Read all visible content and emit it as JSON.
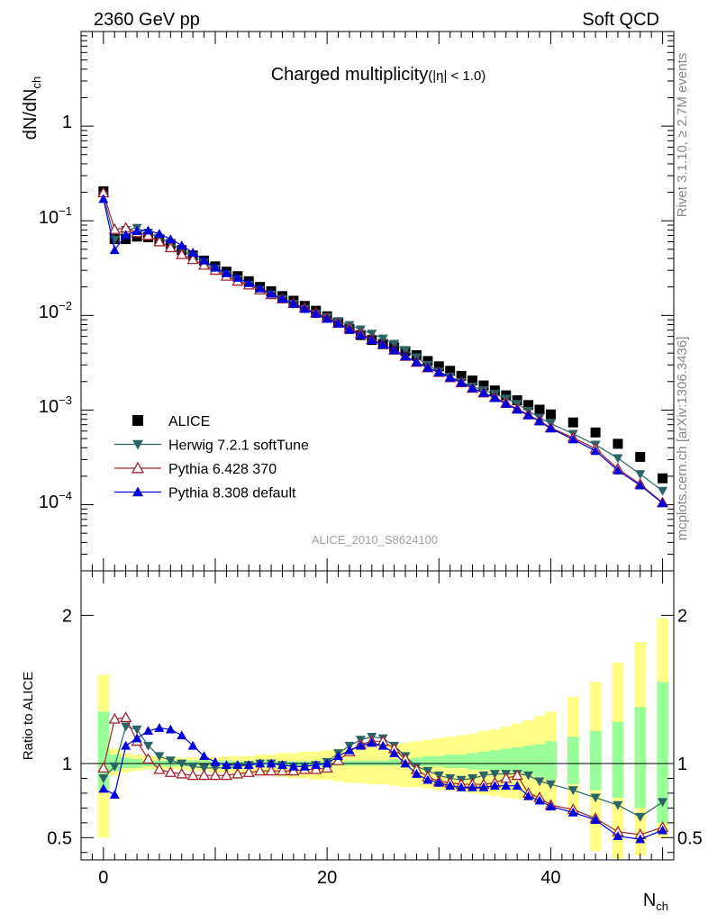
{
  "header": {
    "left": "2360 GeV pp",
    "right": "Soft QCD"
  },
  "side_text": {
    "rivet": "Rivet 3.1.10, ≥ 2.7M events",
    "mcplots": "mcplots.cern.ch [arXiv:1306.3436]"
  },
  "watermark": "ALICE_2010_S8624100",
  "chart_data": [
    {
      "type": "scatter",
      "title": "Charged multiplicity",
      "title_suffix": "(|η| < 1.0)",
      "ylabel": "dN/dN",
      "ylabel_sub": "ch",
      "yscale": "log",
      "ylim": [
        2e-05,
        10
      ],
      "xlim": [
        -2,
        51
      ],
      "ytick_labels": {
        "one": "1",
        "m1": {
          "base": "10",
          "exp": "−1"
        },
        "m2": {
          "base": "10",
          "exp": "−2"
        },
        "m3": {
          "base": "10",
          "exp": "−3"
        },
        "m4": {
          "base": "10",
          "exp": "−4"
        }
      },
      "legend_position": "bottom-left",
      "series": [
        {
          "name": "ALICE",
          "color": "#000000",
          "marker": "square",
          "x": [
            0,
            1,
            2,
            3,
            4,
            5,
            6,
            7,
            8,
            9,
            10,
            11,
            12,
            13,
            14,
            15,
            16,
            17,
            18,
            19,
            20,
            21,
            22,
            23,
            24,
            25,
            26,
            27,
            28,
            29,
            30,
            31,
            32,
            33,
            34,
            35,
            36,
            37,
            38,
            39,
            40,
            42,
            44,
            46,
            48,
            50
          ],
          "values": [
            0.205,
            0.064,
            0.064,
            0.068,
            0.067,
            0.063,
            0.057,
            0.049,
            0.043,
            0.038,
            0.033,
            0.029,
            0.026,
            0.023,
            0.02,
            0.018,
            0.016,
            0.0143,
            0.0126,
            0.0112,
            0.0098,
            0.0084,
            0.0072,
            0.0062,
            0.0055,
            0.005,
            0.0046,
            0.0042,
            0.0038,
            0.0033,
            0.0029,
            0.0026,
            0.0023,
            0.00205,
            0.00182,
            0.00161,
            0.00143,
            0.00127,
            0.00113,
            0.00101,
            0.0009,
            0.00074,
            0.00058,
            0.00044,
            0.00032,
            0.00019
          ]
        },
        {
          "name": "Herwig 7.2.1 softTune",
          "color": "#2b6468",
          "marker": "triangle-down",
          "x": [
            0,
            1,
            2,
            3,
            4,
            5,
            6,
            7,
            8,
            9,
            10,
            11,
            12,
            13,
            14,
            15,
            16,
            17,
            18,
            19,
            20,
            21,
            22,
            23,
            24,
            25,
            26,
            27,
            28,
            29,
            30,
            31,
            32,
            33,
            34,
            35,
            36,
            37,
            38,
            39,
            40,
            42,
            44,
            46,
            48,
            50
          ],
          "values": [
            0.185,
            0.063,
            0.08,
            0.084,
            0.075,
            0.066,
            0.058,
            0.049,
            0.042,
            0.036,
            0.031,
            0.027,
            0.024,
            0.021,
            0.0186,
            0.0166,
            0.0148,
            0.0132,
            0.0117,
            0.0104,
            0.0096,
            0.0087,
            0.0079,
            0.0071,
            0.0064,
            0.0057,
            0.005,
            0.0043,
            0.0036,
            0.003,
            0.00255,
            0.00225,
            0.00198,
            0.00177,
            0.00162,
            0.00148,
            0.00132,
            0.00116,
            0.00098,
            0.00083,
            0.00072,
            0.00056,
            0.00043,
            0.00031,
            0.00021,
            0.00014
          ]
        },
        {
          "name": "Pythia 6.428 370",
          "color": "#a3202f",
          "marker": "triangle-up-open",
          "x": [
            0,
            1,
            2,
            3,
            4,
            5,
            6,
            7,
            8,
            9,
            10,
            11,
            12,
            13,
            14,
            15,
            16,
            17,
            18,
            19,
            20,
            21,
            22,
            23,
            24,
            25,
            26,
            27,
            28,
            29,
            30,
            31,
            32,
            33,
            34,
            35,
            36,
            37,
            38,
            39,
            40,
            42,
            44,
            46,
            48,
            50
          ],
          "values": [
            0.198,
            0.081,
            0.084,
            0.075,
            0.07,
            0.06,
            0.052,
            0.044,
            0.039,
            0.034,
            0.03,
            0.026,
            0.023,
            0.021,
            0.0186,
            0.0166,
            0.015,
            0.0134,
            0.012,
            0.0106,
            0.0094,
            0.0083,
            0.0073,
            0.0064,
            0.0056,
            0.0049,
            0.0043,
            0.0037,
            0.0032,
            0.0028,
            0.0025,
            0.0022,
            0.00195,
            0.0017,
            0.00152,
            0.00136,
            0.00118,
            0.00103,
            0.00089,
            0.00077,
            0.00065,
            0.00051,
            0.00039,
            0.00024,
            0.000165,
            0.000105
          ]
        },
        {
          "name": "Pythia 8.308 default",
          "color": "#0000dd",
          "marker": "triangle-up",
          "x": [
            0,
            1,
            2,
            3,
            4,
            5,
            6,
            7,
            8,
            9,
            10,
            11,
            12,
            13,
            14,
            15,
            16,
            17,
            18,
            19,
            20,
            21,
            22,
            23,
            24,
            25,
            26,
            27,
            28,
            29,
            30,
            31,
            32,
            33,
            34,
            35,
            36,
            37,
            38,
            39,
            40,
            42,
            44,
            46,
            48,
            50
          ],
          "values": [
            0.17,
            0.049,
            0.071,
            0.078,
            0.079,
            0.073,
            0.064,
            0.055,
            0.046,
            0.038,
            0.032,
            0.028,
            0.025,
            0.022,
            0.0193,
            0.017,
            0.015,
            0.0133,
            0.0117,
            0.0104,
            0.0092,
            0.0082,
            0.0071,
            0.0062,
            0.0055,
            0.0049,
            0.0043,
            0.0037,
            0.0032,
            0.0028,
            0.0025,
            0.0022,
            0.00195,
            0.0017,
            0.00152,
            0.00134,
            0.00116,
            0.00101,
            0.00088,
            0.00076,
            0.00064,
            0.00049,
            0.00037,
            0.00023,
            0.00016,
            0.000104
          ]
        }
      ]
    },
    {
      "type": "scatter",
      "ylabel": "Ratio to ALICE",
      "xlabel": "N",
      "xlabel_sub": "ch",
      "ylim": [
        0.35,
        2.3
      ],
      "xlim": [
        -2,
        51
      ],
      "xticks": [
        0,
        20,
        40
      ],
      "xtick_labels": [
        "0",
        "20",
        "40"
      ],
      "yticks": [
        0.5,
        1,
        2
      ],
      "ytick_labels": [
        "0.5",
        "1",
        "2"
      ],
      "bands": {
        "x": [
          0,
          1,
          2,
          3,
          4,
          5,
          6,
          7,
          8,
          9,
          10,
          11,
          12,
          13,
          14,
          15,
          16,
          17,
          18,
          19,
          20,
          21,
          22,
          23,
          24,
          25,
          26,
          27,
          28,
          29,
          30,
          31,
          32,
          33,
          34,
          35,
          36,
          37,
          38,
          39,
          40,
          42,
          44,
          46,
          48,
          50
        ],
        "stat_color": "#99ff99",
        "syst_color": "#ffff88",
        "green_low": [
          0.82,
          0.95,
          0.97,
          0.97,
          0.98,
          0.98,
          0.98,
          0.98,
          0.98,
          0.98,
          0.98,
          0.98,
          0.985,
          0.985,
          0.985,
          0.985,
          0.985,
          0.985,
          0.985,
          0.985,
          0.985,
          0.985,
          0.985,
          0.985,
          0.985,
          0.985,
          0.985,
          0.98,
          0.98,
          0.98,
          0.98,
          0.97,
          0.97,
          0.96,
          0.96,
          0.95,
          0.95,
          0.94,
          0.93,
          0.91,
          0.89,
          0.86,
          0.82,
          0.77,
          0.7,
          0.6
        ],
        "green_high": [
          1.35,
          1.06,
          1.04,
          1.03,
          1.02,
          1.02,
          1.02,
          1.02,
          1.02,
          1.02,
          1.02,
          1.02,
          1.015,
          1.015,
          1.015,
          1.015,
          1.015,
          1.015,
          1.015,
          1.015,
          1.015,
          1.015,
          1.02,
          1.02,
          1.02,
          1.02,
          1.03,
          1.03,
          1.04,
          1.05,
          1.05,
          1.06,
          1.06,
          1.07,
          1.08,
          1.09,
          1.1,
          1.11,
          1.12,
          1.13,
          1.15,
          1.18,
          1.22,
          1.28,
          1.38,
          1.55
        ],
        "yellow_low": [
          0.5,
          0.92,
          0.94,
          0.95,
          0.96,
          0.96,
          0.96,
          0.96,
          0.95,
          0.95,
          0.94,
          0.94,
          0.93,
          0.93,
          0.92,
          0.92,
          0.91,
          0.9,
          0.9,
          0.89,
          0.89,
          0.88,
          0.87,
          0.87,
          0.86,
          0.86,
          0.85,
          0.84,
          0.84,
          0.83,
          0.82,
          0.82,
          0.81,
          0.8,
          0.79,
          0.78,
          0.77,
          0.76,
          0.75,
          0.73,
          0.71,
          0.65,
          0.41,
          0.36,
          0.38,
          0.5
        ],
        "yellow_high": [
          1.6,
          1.1,
          1.07,
          1.06,
          1.05,
          1.05,
          1.04,
          1.04,
          1.04,
          1.04,
          1.04,
          1.05,
          1.05,
          1.05,
          1.06,
          1.06,
          1.07,
          1.07,
          1.08,
          1.08,
          1.09,
          1.1,
          1.1,
          1.11,
          1.12,
          1.12,
          1.13,
          1.14,
          1.15,
          1.16,
          1.17,
          1.18,
          1.19,
          1.2,
          1.22,
          1.23,
          1.25,
          1.27,
          1.29,
          1.32,
          1.35,
          1.45,
          1.55,
          1.68,
          1.82,
          1.98
        ]
      },
      "series": [
        {
          "name": "Herwig 7.2.1 softTune",
          "color": "#2b6468",
          "marker": "triangle-down",
          "x": [
            0,
            1,
            2,
            3,
            4,
            5,
            6,
            7,
            8,
            9,
            10,
            11,
            12,
            13,
            14,
            15,
            16,
            17,
            18,
            19,
            20,
            21,
            22,
            23,
            24,
            25,
            26,
            27,
            28,
            29,
            30,
            31,
            32,
            33,
            34,
            35,
            36,
            37,
            38,
            39,
            40,
            42,
            44,
            46,
            48,
            50
          ],
          "values": [
            0.9,
            0.98,
            1.25,
            1.23,
            1.12,
            1.05,
            1.02,
            1.0,
            0.98,
            0.97,
            0.97,
            0.97,
            0.98,
            0.99,
            1.0,
            1.0,
            0.99,
            0.98,
            0.98,
            0.99,
            1.01,
            1.07,
            1.12,
            1.16,
            1.18,
            1.17,
            1.12,
            1.05,
            0.98,
            0.95,
            0.92,
            0.9,
            0.89,
            0.9,
            0.92,
            0.93,
            0.93,
            0.93,
            0.92,
            0.88,
            0.86,
            0.82,
            0.77,
            0.72,
            0.64,
            0.74
          ]
        },
        {
          "name": "Pythia 6.428 370",
          "color": "#a3202f",
          "marker": "triangle-up-open",
          "x": [
            0,
            1,
            2,
            3,
            4,
            5,
            6,
            7,
            8,
            9,
            10,
            11,
            12,
            13,
            14,
            15,
            16,
            17,
            18,
            19,
            20,
            21,
            22,
            23,
            24,
            25,
            26,
            27,
            28,
            29,
            30,
            31,
            32,
            33,
            34,
            35,
            36,
            37,
            38,
            39,
            40,
            42,
            44,
            46,
            48,
            50
          ],
          "values": [
            0.97,
            1.3,
            1.31,
            1.15,
            1.03,
            0.96,
            0.94,
            0.93,
            0.92,
            0.92,
            0.92,
            0.92,
            0.93,
            0.94,
            0.95,
            0.95,
            0.95,
            0.95,
            0.96,
            0.96,
            0.97,
            1.02,
            1.08,
            1.13,
            1.15,
            1.15,
            1.1,
            1.03,
            0.96,
            0.91,
            0.88,
            0.87,
            0.86,
            0.86,
            0.86,
            0.87,
            0.9,
            0.92,
            0.8,
            0.77,
            0.72,
            0.69,
            0.63,
            0.54,
            0.52,
            0.57
          ]
        },
        {
          "name": "Pythia 8.308 default",
          "color": "#0000dd",
          "marker": "triangle-up",
          "x": [
            0,
            1,
            2,
            3,
            4,
            5,
            6,
            7,
            8,
            9,
            10,
            11,
            12,
            13,
            14,
            15,
            16,
            17,
            18,
            19,
            20,
            21,
            22,
            23,
            24,
            25,
            26,
            27,
            28,
            29,
            30,
            31,
            32,
            33,
            34,
            35,
            36,
            37,
            38,
            39,
            40,
            42,
            44,
            46,
            48,
            50
          ],
          "values": [
            0.83,
            0.79,
            1.12,
            1.17,
            1.22,
            1.24,
            1.23,
            1.19,
            1.12,
            1.05,
            1.01,
            0.99,
            0.99,
            0.99,
            1.0,
            1.0,
            0.99,
            0.98,
            0.98,
            0.99,
            1.0,
            1.05,
            1.09,
            1.12,
            1.14,
            1.12,
            1.07,
            1.0,
            0.93,
            0.89,
            0.87,
            0.85,
            0.84,
            0.84,
            0.84,
            0.85,
            0.85,
            0.85,
            0.78,
            0.75,
            0.71,
            0.67,
            0.62,
            0.51,
            0.49,
            0.55
          ]
        }
      ]
    }
  ]
}
